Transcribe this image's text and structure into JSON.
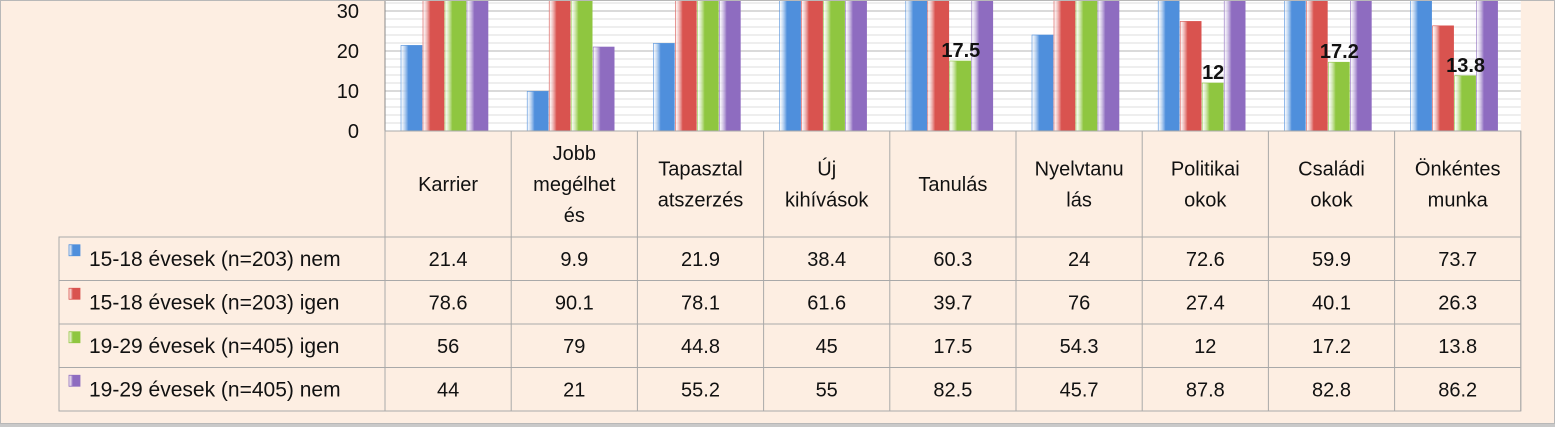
{
  "chart_data": {
    "type": "bar",
    "categories": [
      [
        "Karrier"
      ],
      [
        "Jobb",
        "megélhet",
        "és"
      ],
      [
        "Tapasztal",
        "atszerzés"
      ],
      [
        "Új",
        "kihívások"
      ],
      [
        "Tanulás"
      ],
      [
        "Nyelvtanu",
        "lás"
      ],
      [
        "Politikai",
        "okok"
      ],
      [
        "Családi",
        "okok"
      ],
      [
        "Önkéntes",
        "munka"
      ]
    ],
    "series": [
      {
        "name": "15-18 évesek (n=203) nem",
        "color": "#4f8fdc",
        "values": [
          21.4,
          9.9,
          21.9,
          38.4,
          60.3,
          24,
          72.6,
          59.9,
          73.7
        ],
        "table_values": [
          "21.4",
          "9.9",
          "21.9",
          "38.4",
          "60.3",
          "24",
          "72.6",
          "59.9",
          "73.7"
        ]
      },
      {
        "name": "15-18 évesek (n=203) igen",
        "color": "#d9534f",
        "values": [
          78.6,
          90.1,
          78.1,
          61.6,
          39.7,
          76,
          27.4,
          40.1,
          26.3
        ],
        "table_values": [
          "78.6",
          "90.1",
          "78.1",
          "61.6",
          "39.7",
          "76",
          "27.4",
          "40.1",
          "26.3"
        ]
      },
      {
        "name": "19-29 évesek (n=405) igen",
        "color": "#8fc640",
        "values": [
          56,
          79,
          44.8,
          45,
          17.5,
          54.3,
          12,
          17.2,
          13.8
        ],
        "table_values": [
          "56",
          "79",
          "44.8",
          "45",
          "17.5",
          "54.3",
          "12",
          "17.2",
          "13.8"
        ]
      },
      {
        "name": "19-29 évesek (n=405) nem",
        "color": "#8e6cc0",
        "values": [
          44,
          21,
          55.2,
          55,
          82.5,
          45.7,
          87.8,
          82.8,
          86.2
        ],
        "table_values": [
          "44",
          "21",
          "55.2",
          "55",
          "82.5",
          "45.7",
          "87.8",
          "82.8",
          "86.2"
        ]
      }
    ],
    "visible_data_labels": [
      {
        "series": 2,
        "category": 4,
        "text": "17.5"
      },
      {
        "series": 2,
        "category": 6,
        "text": "12"
      },
      {
        "series": 2,
        "category": 7,
        "text": "17.2"
      },
      {
        "series": 2,
        "category": 8,
        "text": "13.8"
      }
    ],
    "y_ticks": [
      "0",
      "10",
      "20",
      "30"
    ],
    "visible_y_range": [
      0,
      32
    ],
    "grid": true,
    "legend": "in data table (left column)"
  }
}
